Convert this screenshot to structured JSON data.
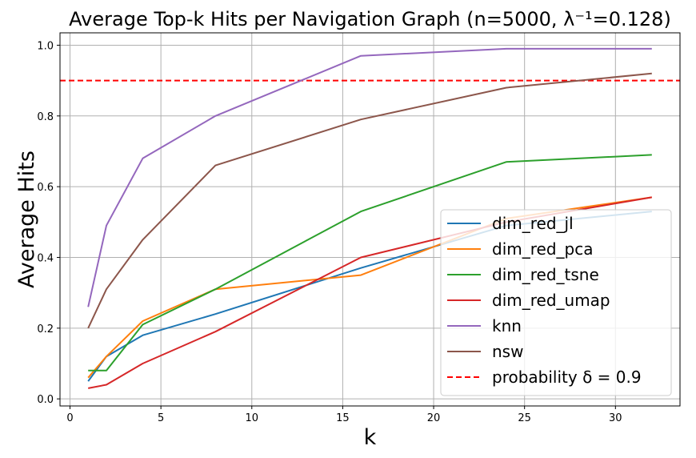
{
  "chart_data": {
    "type": "line",
    "title": "Average Top-k Hits per Navigation Graph (n=5000, λ⁻¹=0.128)",
    "xlabel": "k",
    "ylabel": "Average Hits",
    "xlim": [
      -0.55,
      33.55
    ],
    "ylim": [
      -0.02,
      1.035
    ],
    "xticks": [
      0,
      5,
      10,
      15,
      20,
      25,
      30
    ],
    "yticks": [
      0.0,
      0.2,
      0.4,
      0.6,
      0.8,
      1.0
    ],
    "grid": true,
    "legend_position": "lower right",
    "x": [
      1,
      2,
      4,
      8,
      16,
      24,
      32
    ],
    "series": [
      {
        "name": "dim_red_jl",
        "color": "#1f77b4",
        "values": [
          0.05,
          0.12,
          0.18,
          0.24,
          0.37,
          0.49,
          0.53
        ]
      },
      {
        "name": "dim_red_pca",
        "color": "#ff7f0e",
        "values": [
          0.06,
          0.12,
          0.22,
          0.31,
          0.35,
          0.51,
          0.57
        ]
      },
      {
        "name": "dim_red_tsne",
        "color": "#2ca02c",
        "values": [
          0.08,
          0.08,
          0.21,
          0.31,
          0.53,
          0.67,
          0.69
        ]
      },
      {
        "name": "dim_red_umap",
        "color": "#d62728",
        "values": [
          0.03,
          0.04,
          0.1,
          0.19,
          0.4,
          0.5,
          0.57
        ]
      },
      {
        "name": "knn",
        "color": "#9467bd",
        "values": [
          0.26,
          0.49,
          0.68,
          0.8,
          0.97,
          0.99,
          0.99
        ]
      },
      {
        "name": "nsw",
        "color": "#8c564b",
        "values": [
          0.2,
          0.31,
          0.45,
          0.66,
          0.79,
          0.88,
          0.92
        ]
      }
    ],
    "reference_line": {
      "name": "probability δ = 0.9",
      "y": 0.9,
      "color": "#ff0000",
      "style": "dashed"
    }
  }
}
